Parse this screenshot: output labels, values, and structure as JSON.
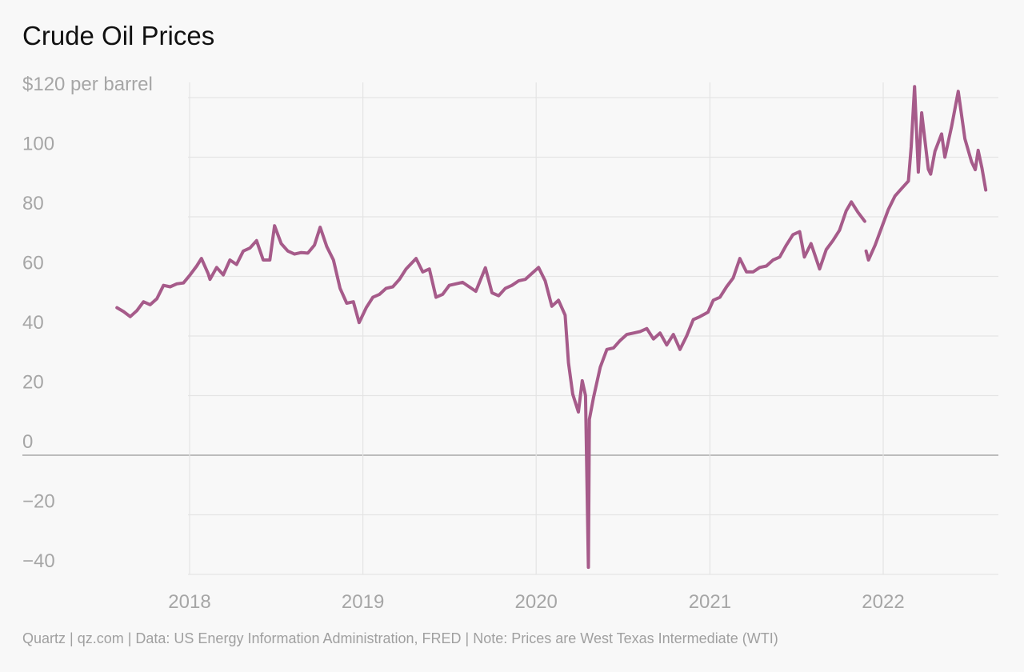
{
  "title": "Crude Oil Prices",
  "footer": "Quartz | qz.com | Data: US Energy Information Administration, FRED | Note: Prices are West Texas Intermediate (WTI)",
  "colors": {
    "line": "#a65b8a",
    "grid": "#e4e4e4",
    "zero_line": "#a8a8a8",
    "tick_text": "#a6a6a6",
    "background": "#f8f8f8"
  },
  "chart_data": {
    "type": "line",
    "title": "Crude Oil Prices",
    "ylabel": "$120 per barrel",
    "ylim": [
      -45,
      120
    ],
    "xlim": [
      "2017-01-01",
      "2022-09-01"
    ],
    "y_ticks": [
      {
        "value": 120,
        "label": "$120 per barrel"
      },
      {
        "value": 100,
        "label": "100"
      },
      {
        "value": 80,
        "label": "80"
      },
      {
        "value": 60,
        "label": "60"
      },
      {
        "value": 40,
        "label": "40"
      },
      {
        "value": 20,
        "label": "20"
      },
      {
        "value": 0,
        "label": "0"
      },
      {
        "value": -20,
        "label": "−20"
      },
      {
        "value": -40,
        "label": "−40"
      }
    ],
    "x_ticks": [
      {
        "value": "2018-01-01",
        "label": "2018"
      },
      {
        "value": "2019-01-01",
        "label": "2019"
      },
      {
        "value": "2020-01-01",
        "label": "2020"
      },
      {
        "value": "2021-01-01",
        "label": "2021"
      },
      {
        "value": "2022-01-01",
        "label": "2022"
      }
    ],
    "grid": true,
    "series": [
      {
        "color": "#a65b8a",
        "segments": [
          [
            [
              "2017-08-01",
              49.5
            ],
            [
              "2017-08-15",
              48.2
            ],
            [
              "2017-08-29",
              46.5
            ],
            [
              "2017-09-12",
              48.5
            ],
            [
              "2017-09-26",
              51.5
            ],
            [
              "2017-10-10",
              50.5
            ],
            [
              "2017-10-24",
              52.5
            ],
            [
              "2017-11-07",
              57.0
            ],
            [
              "2017-11-21",
              56.5
            ],
            [
              "2017-12-05",
              57.5
            ],
            [
              "2017-12-19",
              57.8
            ],
            [
              "2018-01-02",
              60.5
            ],
            [
              "2018-01-16",
              63.5
            ],
            [
              "2018-01-26",
              66.0
            ],
            [
              "2018-02-09",
              61.0
            ],
            [
              "2018-02-13",
              59.0
            ],
            [
              "2018-02-27",
              63.0
            ],
            [
              "2018-03-13",
              60.5
            ],
            [
              "2018-03-27",
              65.5
            ],
            [
              "2018-04-10",
              64.0
            ],
            [
              "2018-04-24",
              68.5
            ],
            [
              "2018-05-08",
              69.5
            ],
            [
              "2018-05-22",
              72.0
            ],
            [
              "2018-06-05",
              65.5
            ],
            [
              "2018-06-19",
              65.5
            ],
            [
              "2018-06-29",
              77.0
            ],
            [
              "2018-07-13",
              71.0
            ],
            [
              "2018-07-27",
              68.5
            ],
            [
              "2018-08-10",
              67.5
            ],
            [
              "2018-08-24",
              68.0
            ],
            [
              "2018-09-07",
              67.8
            ],
            [
              "2018-09-21",
              70.5
            ],
            [
              "2018-10-03",
              76.5
            ],
            [
              "2018-10-17",
              70.0
            ],
            [
              "2018-10-31",
              65.5
            ],
            [
              "2018-11-14",
              56.0
            ],
            [
              "2018-11-28",
              51.0
            ],
            [
              "2018-12-12",
              51.5
            ],
            [
              "2018-12-24",
              44.5
            ],
            [
              "2019-01-08",
              49.5
            ],
            [
              "2019-01-22",
              53.0
            ],
            [
              "2019-02-05",
              54.0
            ],
            [
              "2019-02-19",
              56.0
            ],
            [
              "2019-03-05",
              56.5
            ],
            [
              "2019-03-19",
              59.0
            ],
            [
              "2019-04-02",
              62.5
            ],
            [
              "2019-04-23",
              66.0
            ],
            [
              "2019-05-07",
              61.5
            ],
            [
              "2019-05-21",
              62.5
            ],
            [
              "2019-06-04",
              53.0
            ],
            [
              "2019-06-18",
              54.0
            ],
            [
              "2019-07-02",
              57.0
            ],
            [
              "2019-07-16",
              57.5
            ],
            [
              "2019-07-30",
              58.0
            ],
            [
              "2019-08-13",
              56.5
            ],
            [
              "2019-08-27",
              55.0
            ],
            [
              "2019-09-16",
              62.9
            ],
            [
              "2019-09-30",
              54.5
            ],
            [
              "2019-10-14",
              53.5
            ],
            [
              "2019-10-28",
              56.0
            ],
            [
              "2019-11-11",
              57.0
            ],
            [
              "2019-11-25",
              58.5
            ],
            [
              "2019-12-09",
              59.0
            ],
            [
              "2019-12-23",
              61.0
            ],
            [
              "2020-01-06",
              63.0
            ],
            [
              "2020-01-20",
              58.5
            ],
            [
              "2020-02-03",
              50.0
            ],
            [
              "2020-02-17",
              52.0
            ],
            [
              "2020-03-02",
              47.0
            ],
            [
              "2020-03-09",
              31.0
            ],
            [
              "2020-03-18",
              20.5
            ],
            [
              "2020-03-30",
              14.5
            ],
            [
              "2020-04-07",
              25.0
            ],
            [
              "2020-04-14",
              20.0
            ],
            [
              "2020-04-20",
              -37.6
            ],
            [
              "2020-04-22",
              12.0
            ],
            [
              "2020-05-01",
              19.5
            ],
            [
              "2020-05-15",
              29.5
            ],
            [
              "2020-05-29",
              35.5
            ],
            [
              "2020-06-12",
              36.0
            ],
            [
              "2020-06-26",
              38.5
            ],
            [
              "2020-07-10",
              40.5
            ],
            [
              "2020-07-24",
              41.0
            ],
            [
              "2020-08-07",
              41.5
            ],
            [
              "2020-08-21",
              42.5
            ],
            [
              "2020-09-04",
              39.0
            ],
            [
              "2020-09-18",
              41.0
            ],
            [
              "2020-10-02",
              37.0
            ],
            [
              "2020-10-16",
              40.5
            ],
            [
              "2020-10-30",
              35.5
            ],
            [
              "2020-11-13",
              40.0
            ],
            [
              "2020-11-27",
              45.5
            ],
            [
              "2020-12-11",
              46.5
            ],
            [
              "2020-12-28",
              48.0
            ],
            [
              "2021-01-08",
              52.0
            ],
            [
              "2021-01-22",
              53.0
            ],
            [
              "2021-02-05",
              56.5
            ],
            [
              "2021-02-19",
              59.5
            ],
            [
              "2021-03-05",
              66.0
            ],
            [
              "2021-03-19",
              61.5
            ],
            [
              "2021-04-02",
              61.5
            ],
            [
              "2021-04-16",
              63.0
            ],
            [
              "2021-04-30",
              63.5
            ],
            [
              "2021-05-14",
              65.5
            ],
            [
              "2021-05-28",
              66.5
            ],
            [
              "2021-06-11",
              70.5
            ],
            [
              "2021-06-25",
              74.0
            ],
            [
              "2021-07-09",
              75.0
            ],
            [
              "2021-07-19",
              66.5
            ],
            [
              "2021-08-02",
              71.0
            ],
            [
              "2021-08-20",
              62.5
            ],
            [
              "2021-09-03",
              69.0
            ],
            [
              "2021-09-17",
              72.0
            ],
            [
              "2021-10-01",
              75.5
            ],
            [
              "2021-10-15",
              82.0
            ],
            [
              "2021-10-26",
              85.0
            ],
            [
              "2021-11-09",
              81.5
            ],
            [
              "2021-11-23",
              78.5
            ]
          ],
          [
            [
              "2021-11-26",
              68.5
            ],
            [
              "2021-12-01",
              65.5
            ],
            [
              "2021-12-15",
              70.5
            ],
            [
              "2021-12-29",
              76.5
            ],
            [
              "2022-01-12",
              82.5
            ],
            [
              "2022-01-26",
              87.0
            ],
            [
              "2022-02-09",
              89.5
            ],
            [
              "2022-02-23",
              92.0
            ],
            [
              "2022-03-01",
              103.5
            ],
            [
              "2022-03-08",
              123.7
            ],
            [
              "2022-03-16",
              95.0
            ],
            [
              "2022-03-23",
              114.9
            ],
            [
              "2022-04-06",
              96.0
            ],
            [
              "2022-04-11",
              94.3
            ],
            [
              "2022-04-20",
              102.0
            ],
            [
              "2022-05-04",
              107.8
            ],
            [
              "2022-05-11",
              100.0
            ],
            [
              "2022-05-25",
              110.3
            ],
            [
              "2022-06-08",
              122.1
            ],
            [
              "2022-06-22",
              106.2
            ],
            [
              "2022-07-06",
              98.5
            ],
            [
              "2022-07-14",
              95.8
            ],
            [
              "2022-07-20",
              102.3
            ],
            [
              "2022-07-28",
              96.4
            ],
            [
              "2022-08-05",
              89.0
            ]
          ]
        ]
      }
    ]
  }
}
